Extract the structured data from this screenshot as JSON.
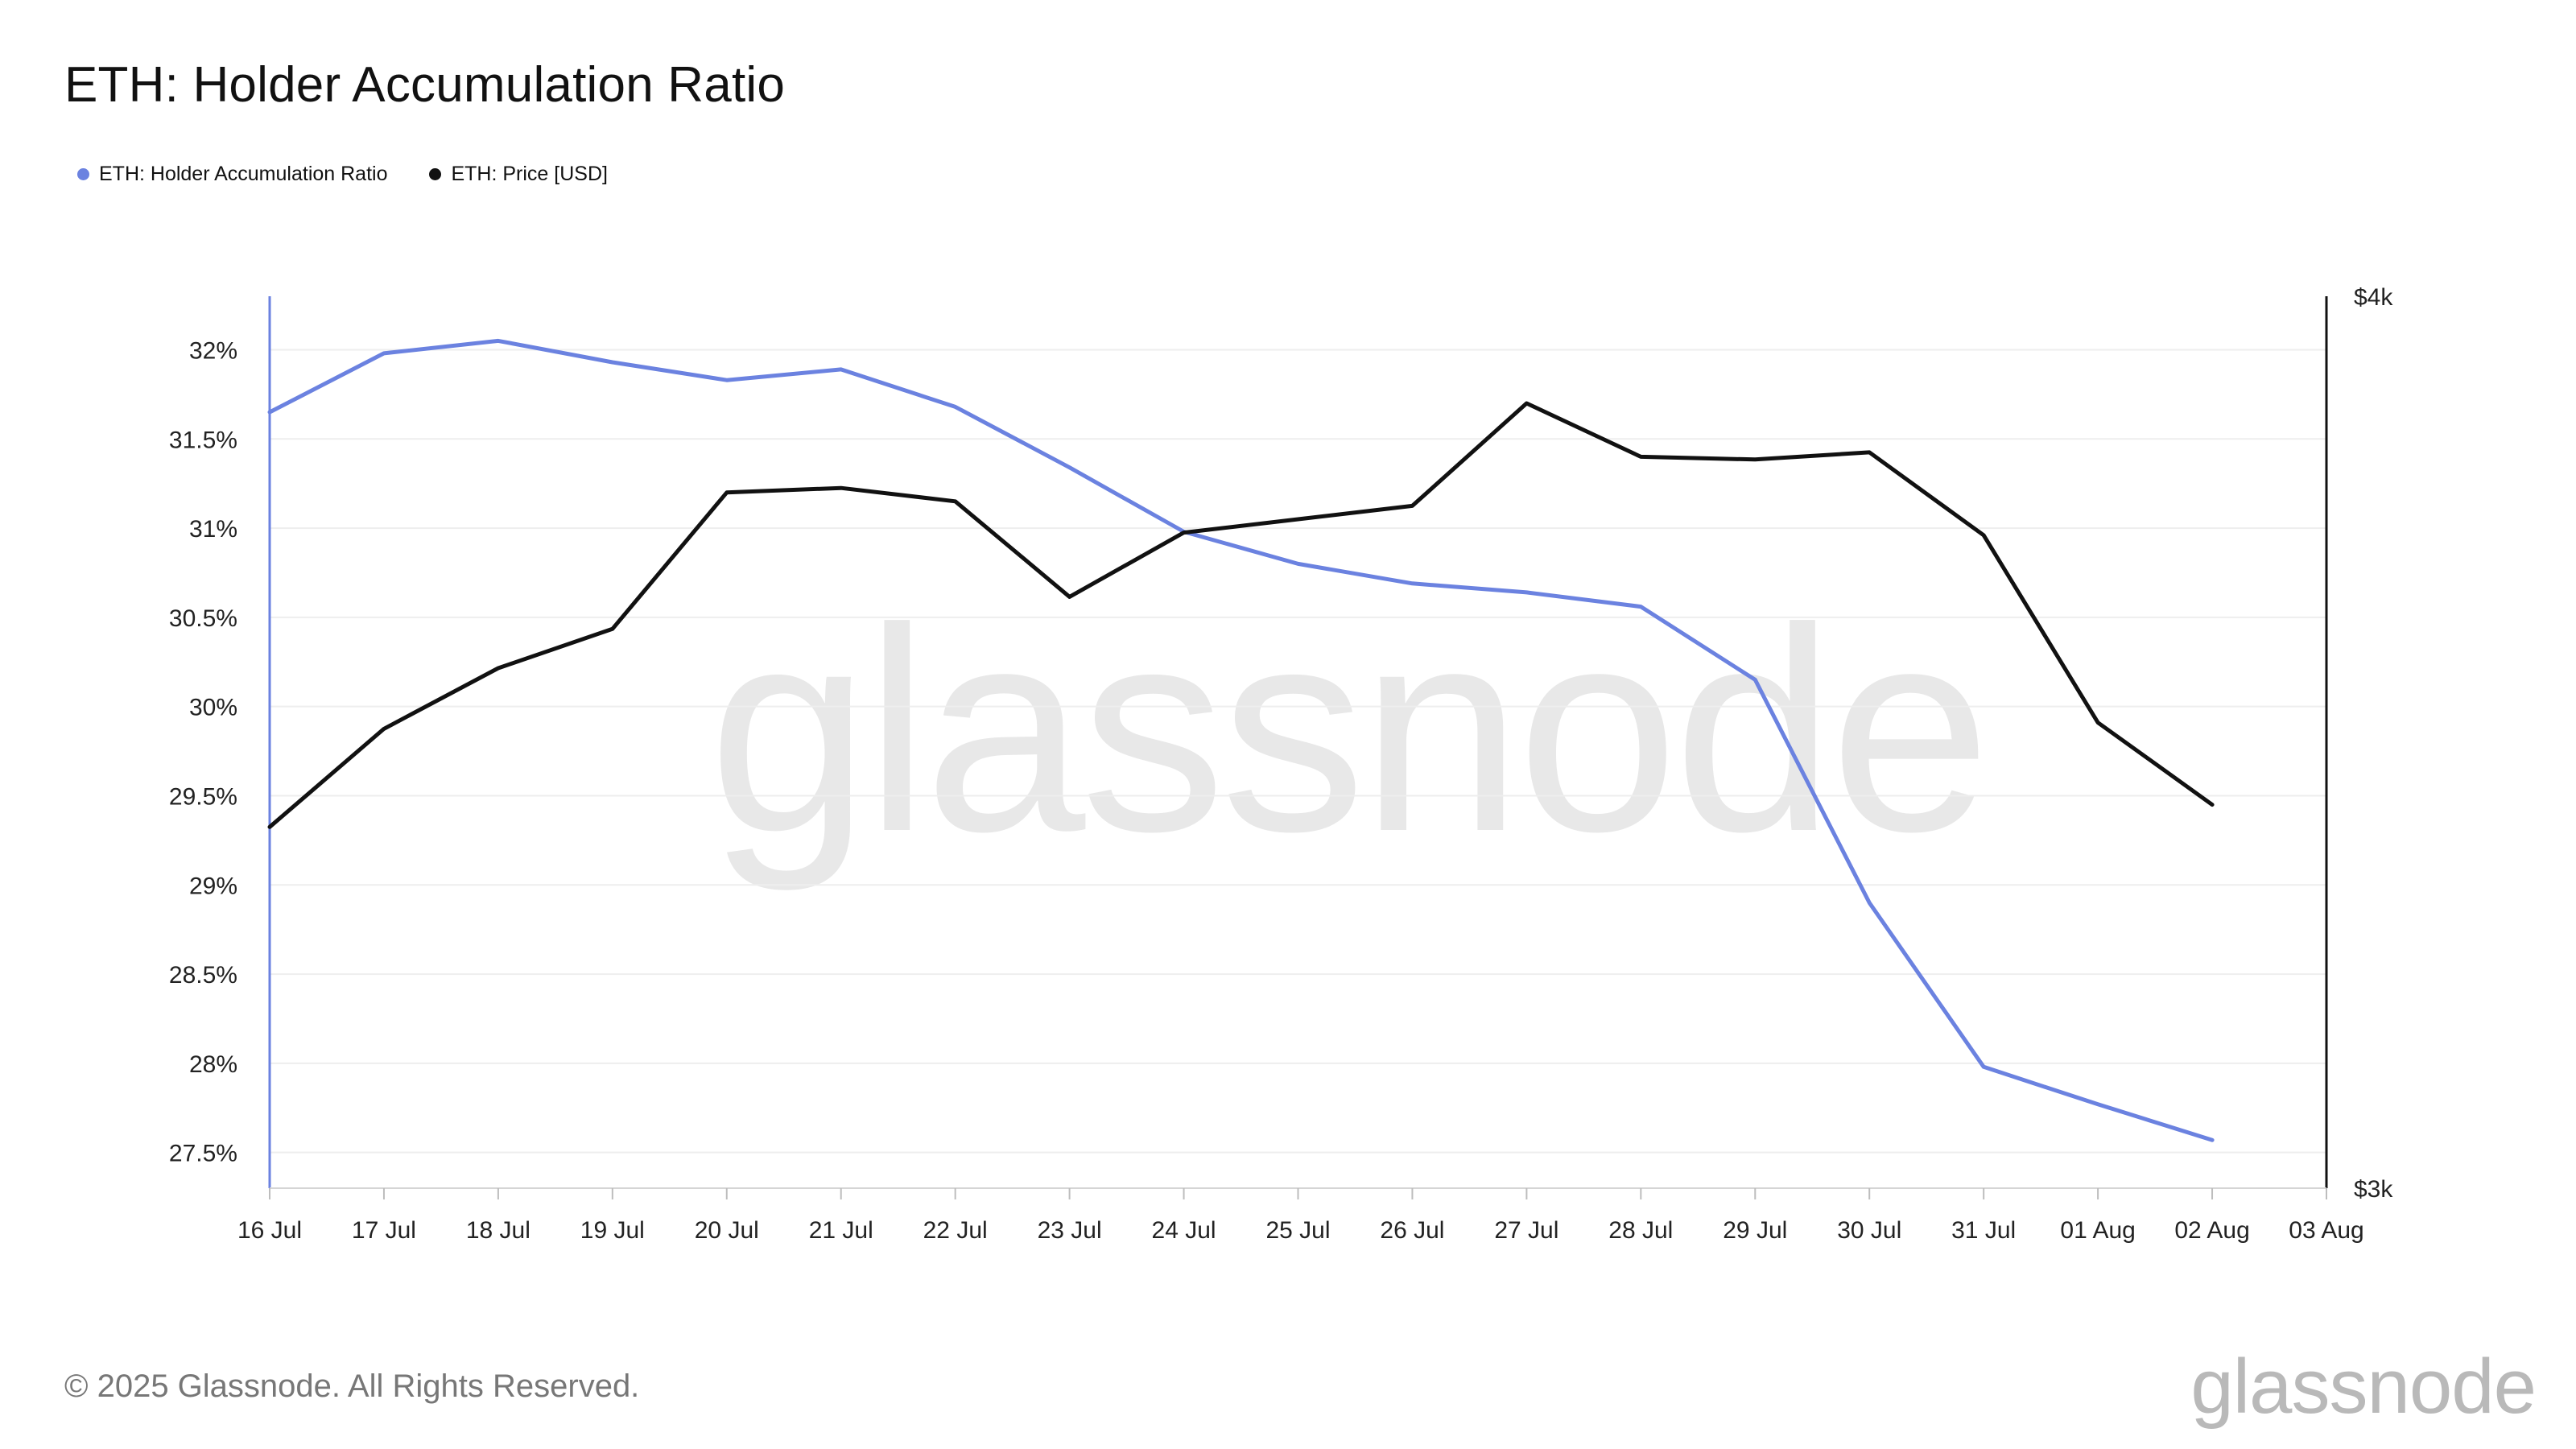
{
  "title": "ETH: Holder Accumulation Ratio",
  "footer": "© 2025 Glassnode. All Rights Reserved.",
  "brand": "glassnode",
  "watermark": "glassnode",
  "chart_data": {
    "type": "line",
    "title": "ETH: Holder Accumulation Ratio",
    "legend_position": "top-left",
    "grid": true,
    "x_ticks": [
      "16 Jul",
      "17 Jul",
      "18 Jul",
      "19 Jul",
      "20 Jul",
      "21 Jul",
      "22 Jul",
      "23 Jul",
      "24 Jul",
      "25 Jul",
      "26 Jul",
      "27 Jul",
      "28 Jul",
      "29 Jul",
      "30 Jul",
      "31 Jul",
      "01 Aug",
      "02 Aug",
      "03 Aug"
    ],
    "x": [
      "16 Jul",
      "17 Jul",
      "18 Jul",
      "19 Jul",
      "20 Jul",
      "21 Jul",
      "22 Jul",
      "23 Jul",
      "24 Jul",
      "25 Jul",
      "26 Jul",
      "27 Jul",
      "28 Jul",
      "29 Jul",
      "30 Jul",
      "31 Jul",
      "01 Aug",
      "02 Aug"
    ],
    "y_left": {
      "ticks": [
        "32%",
        "31.5%",
        "31%",
        "30.5%",
        "30%",
        "29.5%",
        "29%",
        "28.5%",
        "28%",
        "27.5%"
      ],
      "tick_values": [
        32,
        31.5,
        31,
        30.5,
        30,
        29.5,
        29,
        28.5,
        28,
        27.5
      ],
      "range": [
        27.3,
        32.3
      ],
      "color": "#6b82e0"
    },
    "y_right": {
      "ticks": [
        "$4k",
        "$3k"
      ],
      "tick_values": [
        4000,
        3000
      ],
      "range": [
        3000,
        4000
      ],
      "color": "#111111"
    },
    "series": [
      {
        "name": "ETH: Holder Accumulation Ratio",
        "axis": "left",
        "color": "#6b82e0",
        "values": [
          31.65,
          31.98,
          32.05,
          31.93,
          31.83,
          31.89,
          31.68,
          31.34,
          30.98,
          30.8,
          30.69,
          30.64,
          30.56,
          30.15,
          28.9,
          27.98,
          27.77,
          27.57
        ]
      },
      {
        "name": "ETH: Price [USD]",
        "axis": "right",
        "color": "#111111",
        "values": [
          3405,
          3515,
          3583,
          3627,
          3780,
          3785,
          3770,
          3663,
          3735,
          3750,
          3765,
          3880,
          3820,
          3817,
          3825,
          3732,
          3522,
          3430
        ]
      }
    ]
  }
}
